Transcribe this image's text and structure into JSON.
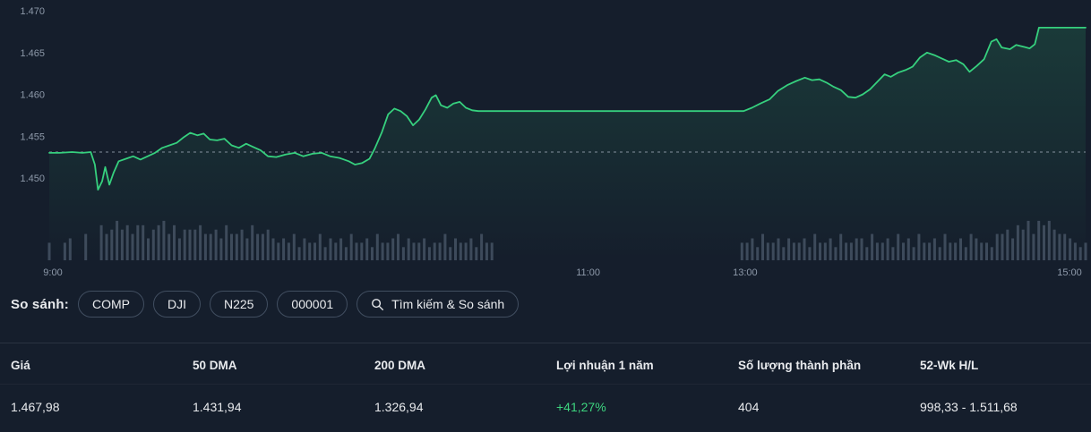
{
  "colors": {
    "background": "#151e2c",
    "text_primary": "#e8eaed",
    "axis_text": "#8d99a9",
    "chart_line": "#36d07e",
    "chart_fill": "#36d07e",
    "prev_close_line": "#97a2b0",
    "volume_bar": "#4e5b6e",
    "chip_border": "#414e60",
    "divider": "#2a3341",
    "positive": "#3dd57f"
  },
  "chart_data": {
    "type": "line",
    "title": "Intraday index price with volume",
    "x_axis": {
      "ticks": [
        {
          "label": "9:00",
          "pct": 0.0035
        },
        {
          "label": "11:00",
          "pct": 0.52
        },
        {
          "label": "13:00",
          "pct": 0.6715
        },
        {
          "label": "15:00",
          "pct": 0.9844
        }
      ],
      "note": "x positions are fraction of plot width; flat segment 0.414-0.670 is the 11:30-13:00 lunch break"
    },
    "y_axis": {
      "ticks": [
        {
          "label": "1.470",
          "value": 1470
        },
        {
          "label": "1.465",
          "value": 1465
        },
        {
          "label": "1.460",
          "value": 1460
        },
        {
          "label": "1.455",
          "value": 1455
        },
        {
          "label": "1.450",
          "value": 1450
        }
      ],
      "range": [
        1446.5,
        1470.5
      ]
    },
    "prev_close": 1453.1,
    "series": [
      {
        "name": "price",
        "last_value": 1467.98,
        "points": [
          [
            0.0,
            1453.0
          ],
          [
            0.01,
            1453.0
          ],
          [
            0.022,
            1453.1
          ],
          [
            0.032,
            1453.0
          ],
          [
            0.04,
            1453.1
          ],
          [
            0.044,
            1451.6
          ],
          [
            0.047,
            1448.6
          ],
          [
            0.051,
            1449.6
          ],
          [
            0.054,
            1451.3
          ],
          [
            0.058,
            1449.2
          ],
          [
            0.062,
            1450.6
          ],
          [
            0.067,
            1452.0
          ],
          [
            0.074,
            1452.3
          ],
          [
            0.081,
            1452.6
          ],
          [
            0.088,
            1452.2
          ],
          [
            0.095,
            1452.6
          ],
          [
            0.102,
            1453.0
          ],
          [
            0.109,
            1453.6
          ],
          [
            0.116,
            1453.9
          ],
          [
            0.123,
            1454.2
          ],
          [
            0.13,
            1454.9
          ],
          [
            0.136,
            1455.4
          ],
          [
            0.143,
            1455.1
          ],
          [
            0.149,
            1455.3
          ],
          [
            0.155,
            1454.6
          ],
          [
            0.162,
            1454.5
          ],
          [
            0.169,
            1454.7
          ],
          [
            0.176,
            1453.9
          ],
          [
            0.183,
            1453.6
          ],
          [
            0.19,
            1454.1
          ],
          [
            0.197,
            1453.7
          ],
          [
            0.204,
            1453.3
          ],
          [
            0.211,
            1452.6
          ],
          [
            0.219,
            1452.5
          ],
          [
            0.228,
            1452.8
          ],
          [
            0.237,
            1453.0
          ],
          [
            0.245,
            1452.6
          ],
          [
            0.254,
            1452.9
          ],
          [
            0.263,
            1453.0
          ],
          [
            0.271,
            1452.6
          ],
          [
            0.28,
            1452.4
          ],
          [
            0.289,
            1452.0
          ],
          [
            0.295,
            1451.6
          ],
          [
            0.302,
            1451.8
          ],
          [
            0.309,
            1452.3
          ],
          [
            0.314,
            1453.5
          ],
          [
            0.321,
            1455.5
          ],
          [
            0.327,
            1457.6
          ],
          [
            0.333,
            1458.3
          ],
          [
            0.339,
            1458.0
          ],
          [
            0.345,
            1457.4
          ],
          [
            0.351,
            1456.3
          ],
          [
            0.357,
            1457.0
          ],
          [
            0.363,
            1458.2
          ],
          [
            0.369,
            1459.6
          ],
          [
            0.373,
            1459.9
          ],
          [
            0.378,
            1458.7
          ],
          [
            0.384,
            1458.4
          ],
          [
            0.39,
            1458.9
          ],
          [
            0.396,
            1459.1
          ],
          [
            0.402,
            1458.4
          ],
          [
            0.408,
            1458.1
          ],
          [
            0.414,
            1458.0
          ],
          [
            0.67,
            1458.0
          ],
          [
            0.678,
            1458.4
          ],
          [
            0.686,
            1458.9
          ],
          [
            0.695,
            1459.4
          ],
          [
            0.703,
            1460.4
          ],
          [
            0.712,
            1461.1
          ],
          [
            0.721,
            1461.6
          ],
          [
            0.729,
            1462.0
          ],
          [
            0.736,
            1461.7
          ],
          [
            0.743,
            1461.8
          ],
          [
            0.75,
            1461.4
          ],
          [
            0.757,
            1460.9
          ],
          [
            0.764,
            1460.5
          ],
          [
            0.771,
            1459.7
          ],
          [
            0.778,
            1459.6
          ],
          [
            0.785,
            1460.0
          ],
          [
            0.792,
            1460.6
          ],
          [
            0.799,
            1461.5
          ],
          [
            0.806,
            1462.4
          ],
          [
            0.812,
            1462.1
          ],
          [
            0.819,
            1462.6
          ],
          [
            0.826,
            1462.9
          ],
          [
            0.833,
            1463.3
          ],
          [
            0.84,
            1464.4
          ],
          [
            0.847,
            1465.0
          ],
          [
            0.854,
            1464.7
          ],
          [
            0.861,
            1464.3
          ],
          [
            0.868,
            1463.9
          ],
          [
            0.875,
            1464.1
          ],
          [
            0.882,
            1463.6
          ],
          [
            0.888,
            1462.7
          ],
          [
            0.895,
            1463.4
          ],
          [
            0.902,
            1464.2
          ],
          [
            0.909,
            1466.3
          ],
          [
            0.914,
            1466.6
          ],
          [
            0.919,
            1465.6
          ],
          [
            0.927,
            1465.4
          ],
          [
            0.933,
            1465.9
          ],
          [
            0.94,
            1465.7
          ],
          [
            0.946,
            1465.5
          ],
          [
            0.951,
            1466.0
          ],
          [
            0.955,
            1467.98
          ],
          [
            0.963,
            1467.98
          ],
          [
            1.0,
            1467.98
          ]
        ]
      }
    ],
    "volume_levels": [
      "4004500600",
      "8679786885",
      "7896857778",
      "6675866758",
      "6675454635",
      "4463545364",
      "4536445635",
      "4453446354",
      "453644",
      "0000000000",
      "0000000000",
      "0000000000",
      "0000000000",
      "0000000",
      "4453644",
      "5354453644",
      "5364455364",
      "4536453644",
      "5364453654",
      "4366758796",
      "989766",
      "5434"
    ]
  },
  "compare": {
    "label": "So sánh:",
    "chips": [
      {
        "label": "COMP"
      },
      {
        "label": "DJI"
      },
      {
        "label": "N225"
      },
      {
        "label": "000001"
      }
    ],
    "search_label": "Tìm kiếm & So sánh"
  },
  "stats": {
    "columns": [
      {
        "header": "Giá",
        "value": "1.467,98"
      },
      {
        "header": "50 DMA",
        "value": "1.431,94"
      },
      {
        "header": "200 DMA",
        "value": "1.326,94"
      },
      {
        "header": "Lợi nhuận 1 năm",
        "value": "+41,27%",
        "positive": true
      },
      {
        "header": "Số lượng thành phần",
        "value": "404"
      },
      {
        "header": "52-Wk H/L",
        "value": "998,33 - 1.511,68"
      }
    ]
  }
}
